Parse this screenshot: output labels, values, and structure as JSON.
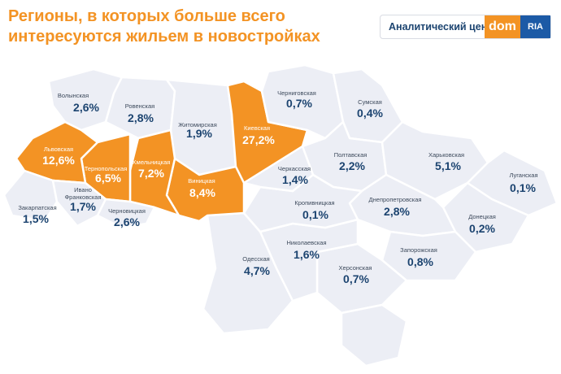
{
  "title": "Регионы, в которых больше всего интересуются жильем в новостройках",
  "brand": {
    "label": "Аналитический центр",
    "dom": "dom",
    "ria": "RIA"
  },
  "colors": {
    "highlight": "#f39324",
    "region": "#eceef5",
    "value_text": "#1c4470"
  },
  "regions": [
    {
      "name": "Волынская",
      "value": "2,6%",
      "highlight": false
    },
    {
      "name": "Ровенская",
      "value": "2,8%",
      "highlight": false
    },
    {
      "name": "Житомирская",
      "value": "1,9%",
      "highlight": false
    },
    {
      "name": "Киевская",
      "value": "27,2%",
      "highlight": true
    },
    {
      "name": "Черниговская",
      "value": "0,7%",
      "highlight": false
    },
    {
      "name": "Сумская",
      "value": "0,4%",
      "highlight": false
    },
    {
      "name": "Полтавская",
      "value": "2,2%",
      "highlight": false
    },
    {
      "name": "Харьковская",
      "value": "5,1%",
      "highlight": false
    },
    {
      "name": "Луганская",
      "value": "0,1%",
      "highlight": false
    },
    {
      "name": "Донецкая",
      "value": "0,2%",
      "highlight": false
    },
    {
      "name": "Днепропетровская",
      "value": "2,8%",
      "highlight": false
    },
    {
      "name": "Запорожская",
      "value": "0,8%",
      "highlight": false
    },
    {
      "name": "Херсонская",
      "value": "0,7%",
      "highlight": false
    },
    {
      "name": "Николаевская",
      "value": "1,6%",
      "highlight": false
    },
    {
      "name": "Одесская",
      "value": "4,7%",
      "highlight": false
    },
    {
      "name": "Кропивницкая",
      "value": "0,1%",
      "highlight": false
    },
    {
      "name": "Черкасская",
      "value": "1,4%",
      "highlight": false
    },
    {
      "name": "Виницкая",
      "value": "8,4%",
      "highlight": true
    },
    {
      "name": "Хмельницкая",
      "value": "7,2%",
      "highlight": true
    },
    {
      "name": "Тернопольская",
      "value": "6,5%",
      "highlight": true
    },
    {
      "name": "Львовская",
      "value": "12,6%",
      "highlight": true
    },
    {
      "name": "Закарпатская",
      "value": "1,5%",
      "highlight": false
    },
    {
      "name": "Ивано Франковская",
      "value": "1,7%",
      "highlight": false
    },
    {
      "name": "Черновицкая",
      "value": "2,6%",
      "highlight": false
    }
  ]
}
